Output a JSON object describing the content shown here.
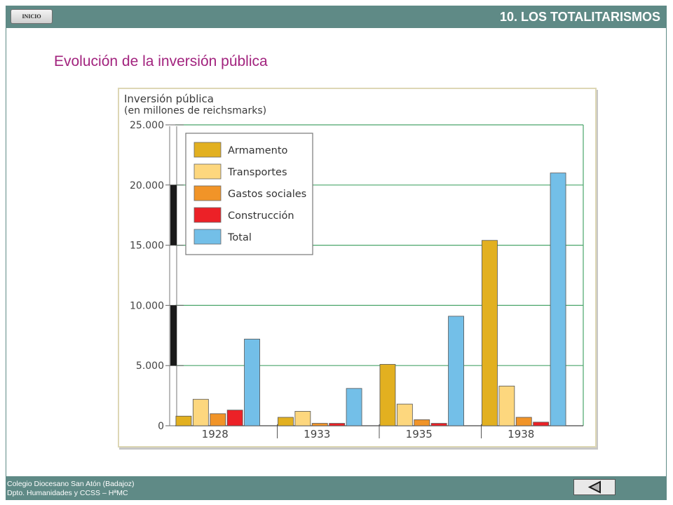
{
  "header": {
    "home_label": "INICIO",
    "unit_title": "10. LOS TOTALITARISMOS"
  },
  "page_title": "Evolución de la inversión pública",
  "footer": {
    "line1": "Colegio Diocesano San Atón (Badajoz)",
    "line2": "Dpto. Humanidades y CCSS – HªMC"
  },
  "icons": {
    "back": "triangle-left-icon"
  },
  "colors": {
    "bar": "#5f8a86",
    "title": "#a2237e",
    "grid": "#4aa56a",
    "axis_band": "#1a1a1a"
  },
  "chart_data": {
    "type": "bar",
    "title": "Inversión pública",
    "subtitle": "(en millones de reichsmarks)",
    "categories": [
      "1928",
      "1933",
      "1935",
      "1938"
    ],
    "series": [
      {
        "name": "Armamento",
        "color": "#e2b020",
        "values": [
          800,
          700,
          5100,
          15400
        ]
      },
      {
        "name": "Transportes",
        "color": "#fdd77e",
        "values": [
          2200,
          1200,
          1800,
          3300
        ]
      },
      {
        "name": "Gastos sociales",
        "color": "#f19428",
        "values": [
          1000,
          200,
          500,
          700
        ]
      },
      {
        "name": "Construcción",
        "color": "#ec2127",
        "values": [
          1300,
          200,
          200,
          300
        ]
      },
      {
        "name": "Total",
        "color": "#73bfe8",
        "values": [
          7200,
          3100,
          9100,
          21000
        ]
      }
    ],
    "yticks": [
      "0",
      "5.000",
      "10.000",
      "15.000",
      "20.000",
      "25.000"
    ],
    "ylim": [
      0,
      25000
    ],
    "grid": true,
    "legend": "top-left"
  }
}
